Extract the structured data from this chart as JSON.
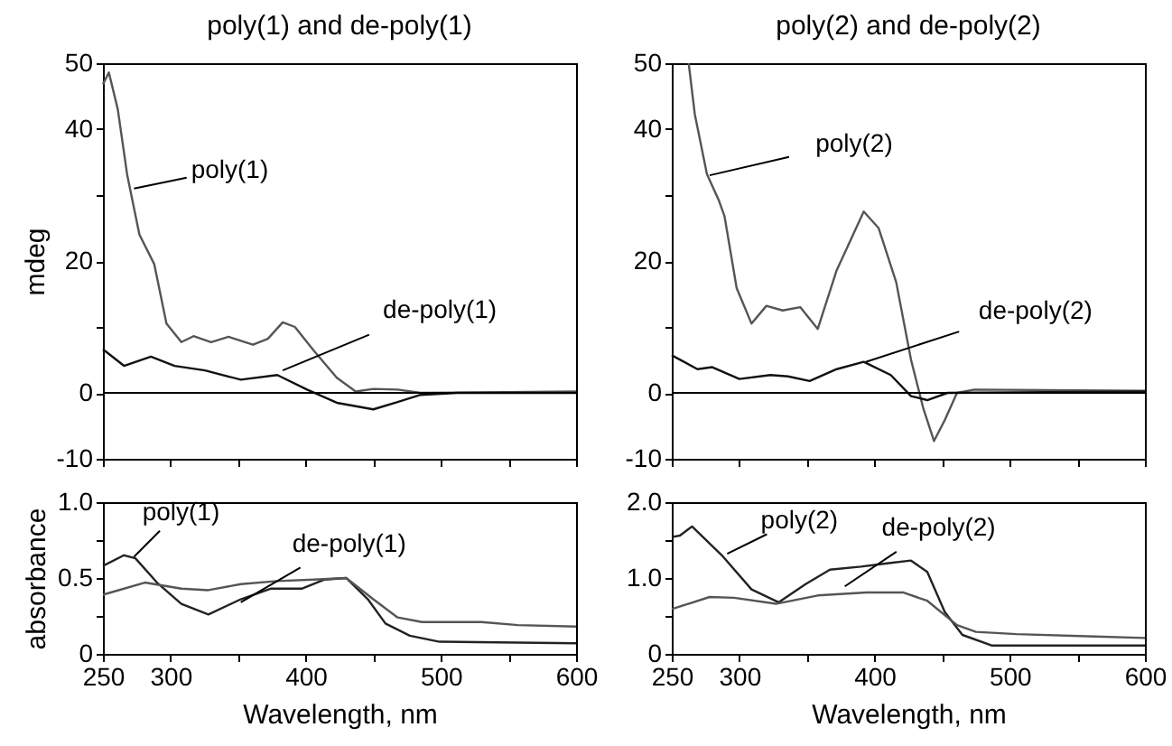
{
  "chart_data": [
    {
      "type": "line",
      "title": "poly(1) and de-poly(1)",
      "ylabel": "mdeg",
      "xlim": [
        250,
        600
      ],
      "ylim": [
        -10,
        50
      ],
      "xticks": [
        {
          "value": 250,
          "label": null
        },
        {
          "value": 300,
          "label": null
        },
        {
          "value": 350,
          "label": null
        },
        {
          "value": 400,
          "label": null
        },
        {
          "value": 450,
          "label": null
        },
        {
          "value": 500,
          "label": null
        },
        {
          "value": 550,
          "label": null
        },
        {
          "value": 600,
          "label": null
        }
      ],
      "yticks": [
        -10,
        0,
        {
          "value": 10,
          "label": null
        },
        20,
        {
          "value": 30,
          "label": null
        },
        40,
        50
      ],
      "tick_labels": "y",
      "grid": false,
      "ref_lines": [
        {
          "axis": "y",
          "value": 0,
          "color": "#000000"
        }
      ],
      "annotations": [
        {
          "text": "poly(1)",
          "x": 273,
          "y": 31
        },
        {
          "text": "de-poly(1)",
          "x": 383,
          "y": 3.4
        }
      ],
      "series": [
        {
          "color": "#555555",
          "x": [
            250,
            254.4,
            261,
            268,
            277,
            288,
            297,
            308,
            317,
            330,
            343,
            361,
            372,
            383,
            392,
            406,
            423,
            437,
            450,
            468,
            485,
            600
          ],
          "values": [
            46.8,
            48.6,
            43,
            33,
            24,
            19.5,
            10.5,
            7.7,
            8.6,
            7.7,
            8.5,
            7.3,
            8.2,
            10.7,
            10,
            6.4,
            2.3,
            0.2,
            0.6,
            0.5,
            0,
            0.2
          ]
        },
        {
          "color": "#111111",
          "x": [
            250,
            265.6,
            285.5,
            303,
            325.5,
            352,
            379,
            401,
            423,
            450,
            468,
            485,
            512,
            600
          ],
          "values": [
            6.6,
            4.1,
            5.5,
            4.1,
            3.4,
            2,
            2.7,
            0.5,
            -1.5,
            -2.5,
            -1.4,
            -0.3,
            0,
            0
          ]
        }
      ]
    },
    {
      "type": "line",
      "title": "poly(2) and de-poly(2)",
      "xlim": [
        250,
        600
      ],
      "ylim": [
        -10,
        50
      ],
      "xticks": [
        {
          "value": 250,
          "label": null
        },
        {
          "value": 300,
          "label": null
        },
        {
          "value": 350,
          "label": null
        },
        {
          "value": 400,
          "label": null
        },
        {
          "value": 450,
          "label": null
        },
        {
          "value": 500,
          "label": null
        },
        {
          "value": 550,
          "label": null
        },
        {
          "value": 600,
          "label": null
        }
      ],
      "yticks": [
        -10,
        0,
        {
          "value": 10,
          "label": null
        },
        20,
        {
          "value": 30,
          "label": null
        },
        40,
        50
      ],
      "tick_labels": "y",
      "grid": false,
      "ref_lines": [
        {
          "axis": "y",
          "value": 0,
          "color": "#000000"
        }
      ],
      "annotations": [
        {
          "text": "poly(2)",
          "x": 278,
          "y": 33
        },
        {
          "text": "de-poly(2)",
          "x": 393.5,
          "y": 4.7
        }
      ],
      "series": [
        {
          "color": "#555555",
          "x": [
            262.5,
            267,
            276,
            285,
            289,
            298,
            309,
            320,
            332,
            345,
            358,
            372,
            392,
            403,
            416,
            427,
            436,
            444,
            452,
            461,
            474,
            600
          ],
          "values": [
            50,
            42.3,
            33.2,
            29.1,
            26.8,
            15.9,
            10.5,
            13.2,
            12.5,
            13,
            9.7,
            18.6,
            27.5,
            25,
            16.8,
            5,
            -2.3,
            -7.3,
            -4.1,
            0,
            0.5,
            0.3
          ]
        },
        {
          "color": "#111111",
          "x": [
            250,
            269,
            280,
            300,
            323,
            336,
            352,
            372,
            392,
            412,
            427,
            439,
            454,
            600
          ],
          "values": [
            5.7,
            3.6,
            3.9,
            2.1,
            2.7,
            2.5,
            1.8,
            3.6,
            4.7,
            2.7,
            -0.5,
            -1.1,
            0,
            0.2
          ]
        }
      ]
    },
    {
      "type": "line",
      "xlabel": "Wavelength, nm",
      "ylabel": "absorbance",
      "xlim": [
        250,
        600
      ],
      "ylim": [
        0,
        1
      ],
      "xticks": [
        250,
        300,
        {
          "value": 350,
          "label": null
        },
        400,
        {
          "value": 450,
          "label": null
        },
        500,
        {
          "value": 550,
          "label": null
        },
        600
      ],
      "yticks": [
        0,
        {
          "value": 0.25,
          "label": null
        },
        {
          "value": 0.5,
          "label": "0.5"
        },
        {
          "value": 0.75,
          "label": null
        },
        {
          "value": 1,
          "label": "1.0"
        }
      ],
      "grid": false,
      "annotations": [
        {
          "text": "poly(1)",
          "x": 273,
          "y": 0.64
        },
        {
          "text": "de-poly(1)",
          "x": 352,
          "y": 0.34
        }
      ],
      "series": [
        {
          "color": "#222222",
          "x": [
            250,
            265.6,
            274,
            290,
            308,
            328,
            352,
            374,
            397,
            414,
            430,
            446,
            459,
            477,
            499,
            600
          ],
          "values": [
            0.58,
            0.65,
            0.63,
            0.47,
            0.33,
            0.26,
            0.36,
            0.43,
            0.43,
            0.49,
            0.5,
            0.36,
            0.2,
            0.12,
            0.08,
            0.07
          ]
        },
        {
          "color": "#555555",
          "x": [
            250,
            281,
            308,
            328,
            352,
            379,
            406,
            430,
            450,
            468,
            486,
            530,
            557,
            600
          ],
          "values": [
            0.39,
            0.47,
            0.43,
            0.42,
            0.46,
            0.48,
            0.49,
            0.5,
            0.36,
            0.24,
            0.21,
            0.21,
            0.19,
            0.18
          ]
        }
      ]
    },
    {
      "type": "line",
      "xlabel": "Wavelength, nm",
      "xlim": [
        250,
        600
      ],
      "ylim": [
        0,
        2
      ],
      "xticks": [
        250,
        300,
        {
          "value": 350,
          "label": null
        },
        400,
        {
          "value": 450,
          "label": null
        },
        500,
        {
          "value": 550,
          "label": null
        },
        600
      ],
      "yticks": [
        0,
        {
          "value": 0.5,
          "label": null
        },
        {
          "value": 1,
          "label": "1.0"
        },
        {
          "value": 1.5,
          "label": null
        },
        {
          "value": 2,
          "label": "2.0"
        }
      ],
      "grid": false,
      "annotations": [
        {
          "text": "poly(2)",
          "x": 291,
          "y": 1.32
        },
        {
          "text": "de-poly(2)",
          "x": 378,
          "y": 0.89
        }
      ],
      "series": [
        {
          "color": "#222222",
          "x": [
            250,
            256,
            265,
            287,
            309,
            329,
            349,
            367,
            390,
            412,
            427,
            439,
            452,
            465,
            487,
            600
          ],
          "values": [
            1.54,
            1.56,
            1.68,
            1.3,
            0.85,
            0.68,
            0.92,
            1.11,
            1.15,
            1.2,
            1.23,
            1.08,
            0.55,
            0.25,
            0.11,
            0.11
          ]
        },
        {
          "color": "#555555",
          "x": [
            250,
            278,
            296,
            327,
            358,
            394,
            421,
            439,
            461,
            475,
            505,
            563,
            600
          ],
          "values": [
            0.59,
            0.75,
            0.74,
            0.66,
            0.77,
            0.81,
            0.81,
            0.7,
            0.38,
            0.29,
            0.26,
            0.23,
            0.21
          ]
        }
      ]
    }
  ]
}
